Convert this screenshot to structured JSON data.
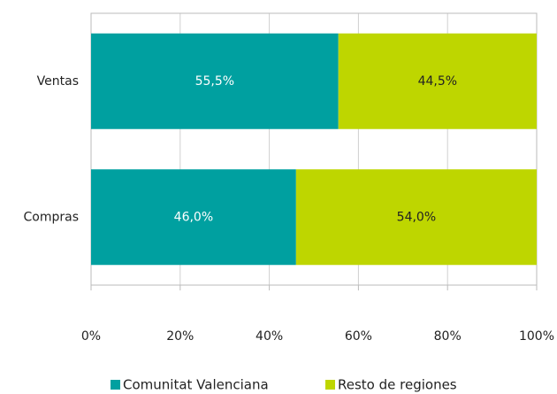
{
  "chart_data": {
    "type": "stacked_barh",
    "categories": [
      "Ventas",
      "Compras"
    ],
    "series": [
      {
        "name": "Comunitat Valenciana",
        "color": "#00a0a0",
        "values": [
          55.5,
          46.0
        ],
        "value_labels": [
          "55,5%",
          "46,0%"
        ]
      },
      {
        "name": "Resto de regiones",
        "color": "#bed600",
        "values": [
          44.5,
          54.0
        ],
        "value_labels": [
          "44,5%",
          "54,0%"
        ]
      }
    ],
    "xlim": [
      0,
      100
    ],
    "xticks": [
      {
        "value": 0,
        "label": "0%"
      },
      {
        "value": 20,
        "label": "20%"
      },
      {
        "value": 40,
        "label": "40%"
      },
      {
        "value": 60,
        "label": "60%"
      },
      {
        "value": 80,
        "label": "80%"
      },
      {
        "value": 100,
        "label": "100%"
      }
    ],
    "grid": true,
    "legend": "bottom"
  }
}
